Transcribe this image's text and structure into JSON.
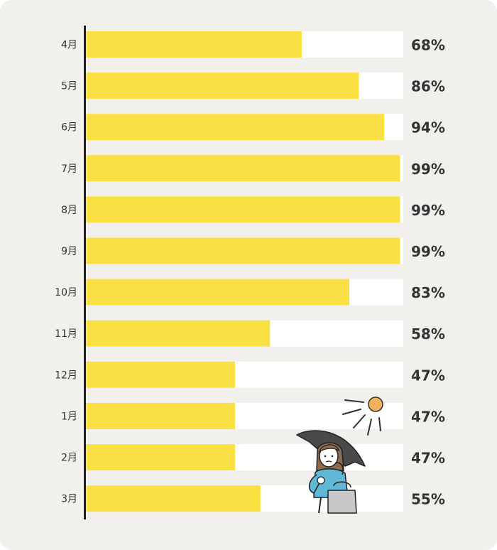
{
  "chart_data": {
    "type": "bar",
    "orientation": "horizontal",
    "categories": [
      "4月",
      "5月",
      "6月",
      "7月",
      "8月",
      "9月",
      "10月",
      "11月",
      "12月",
      "1月",
      "2月",
      "3月"
    ],
    "values": [
      68,
      86,
      94,
      99,
      99,
      99,
      83,
      58,
      47,
      47,
      47,
      55
    ],
    "value_labels": [
      "68%",
      "86%",
      "94%",
      "99%",
      "99%",
      "99%",
      "83%",
      "58%",
      "47%",
      "47%",
      "47%",
      "55%"
    ],
    "xlim": [
      0,
      100
    ],
    "grid": false,
    "colors": {
      "bar": "#fbe044",
      "track": "#ffffff",
      "axis": "#222222",
      "background": "#f1f0ec"
    }
  },
  "illustration": {
    "name": "woman-with-parasol-and-sun",
    "colors": {
      "sun": "#f4b15c",
      "parasol": "#4a4a4a",
      "shirt": "#5fb8d6",
      "bag": "#c8c8c8",
      "hair": "#8c6b4f"
    }
  }
}
